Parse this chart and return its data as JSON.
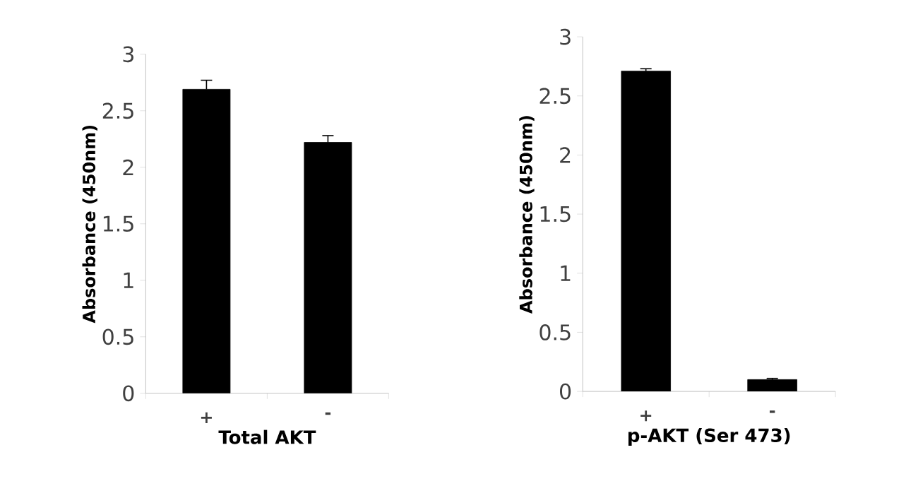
{
  "chart_data": [
    {
      "type": "bar",
      "categories": [
        "+",
        "-"
      ],
      "values": [
        2.69,
        2.22
      ],
      "errors": [
        0.08,
        0.06
      ],
      "color": "#000000",
      "ylim": [
        0,
        3
      ],
      "yticks": [
        0,
        0.5,
        1,
        1.5,
        2,
        2.5,
        3
      ],
      "ylabel": "Absorbance (450nm)",
      "xlabel": "Total AKT"
    },
    {
      "type": "bar",
      "categories": [
        "+",
        "-"
      ],
      "values": [
        2.71,
        0.1
      ],
      "errors": [
        0.02,
        0.01
      ],
      "color": "#000000",
      "ylim": [
        0,
        3
      ],
      "yticks": [
        0,
        0.5,
        1,
        1.5,
        2,
        2.5,
        3
      ],
      "ylabel": "Absorbance (450nm)",
      "xlabel": "p-AKT (Ser 473)"
    }
  ]
}
